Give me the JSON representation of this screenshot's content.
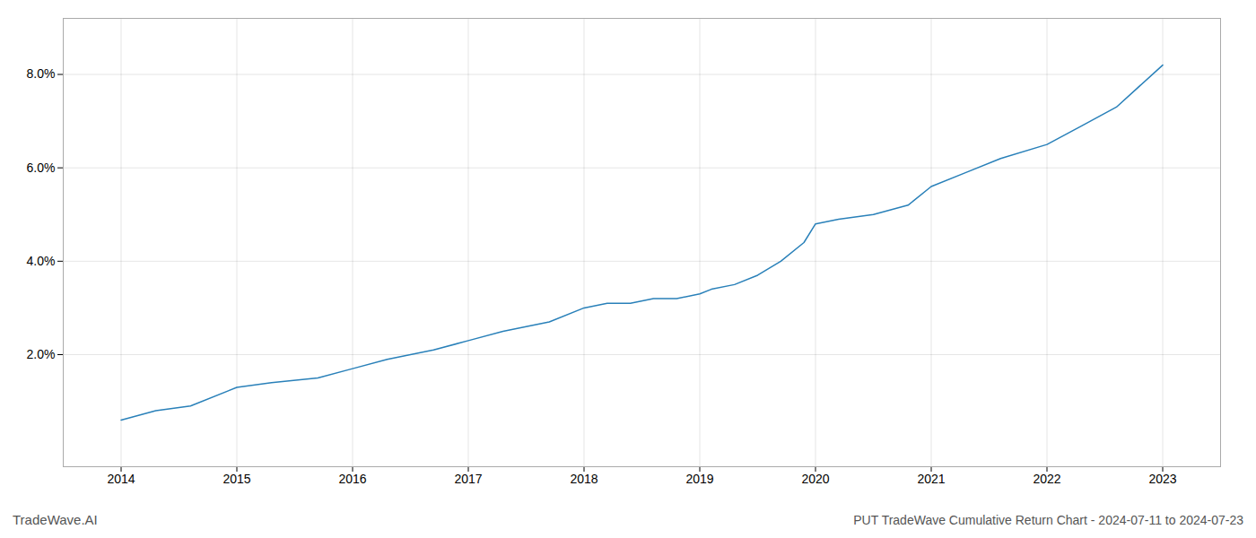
{
  "chart_data": {
    "type": "line",
    "title": "PUT TradeWave Cumulative Return Chart - 2024-07-11 to 2024-07-23",
    "annotations": [
      "TradeWave.AI"
    ],
    "color": "#2980B9",
    "x": [
      2014.0,
      2014.3,
      2014.6,
      2015.0,
      2015.3,
      2015.7,
      2016.0,
      2016.3,
      2016.7,
      2017.0,
      2017.3,
      2017.7,
      2018.0,
      2018.2,
      2018.4,
      2018.6,
      2018.8,
      2019.0,
      2019.1,
      2019.3,
      2019.5,
      2019.7,
      2019.9,
      2020.0,
      2020.2,
      2020.5,
      2020.8,
      2021.0,
      2021.3,
      2021.6,
      2022.0,
      2022.3,
      2022.6,
      2023.0
    ],
    "values": [
      0.006,
      0.008,
      0.009,
      0.013,
      0.014,
      0.015,
      0.017,
      0.019,
      0.021,
      0.023,
      0.025,
      0.027,
      0.03,
      0.031,
      0.031,
      0.032,
      0.032,
      0.033,
      0.034,
      0.035,
      0.037,
      0.04,
      0.044,
      0.048,
      0.049,
      0.05,
      0.052,
      0.056,
      0.059,
      0.062,
      0.065,
      0.069,
      0.073,
      0.082
    ],
    "xlim": [
      2013.5,
      2023.5
    ],
    "xticks": [
      2014,
      2015,
      2016,
      2017,
      2018,
      2019,
      2020,
      2021,
      2022,
      2023
    ],
    "ylim": [
      -0.004,
      0.092
    ],
    "yticks": [
      {
        "value": 0.02,
        "label": "2.0%"
      },
      {
        "value": 0.04,
        "label": "4.0%"
      },
      {
        "value": 0.06,
        "label": "6.0%"
      },
      {
        "value": 0.08,
        "label": "8.0%"
      }
    ],
    "grid": true
  }
}
